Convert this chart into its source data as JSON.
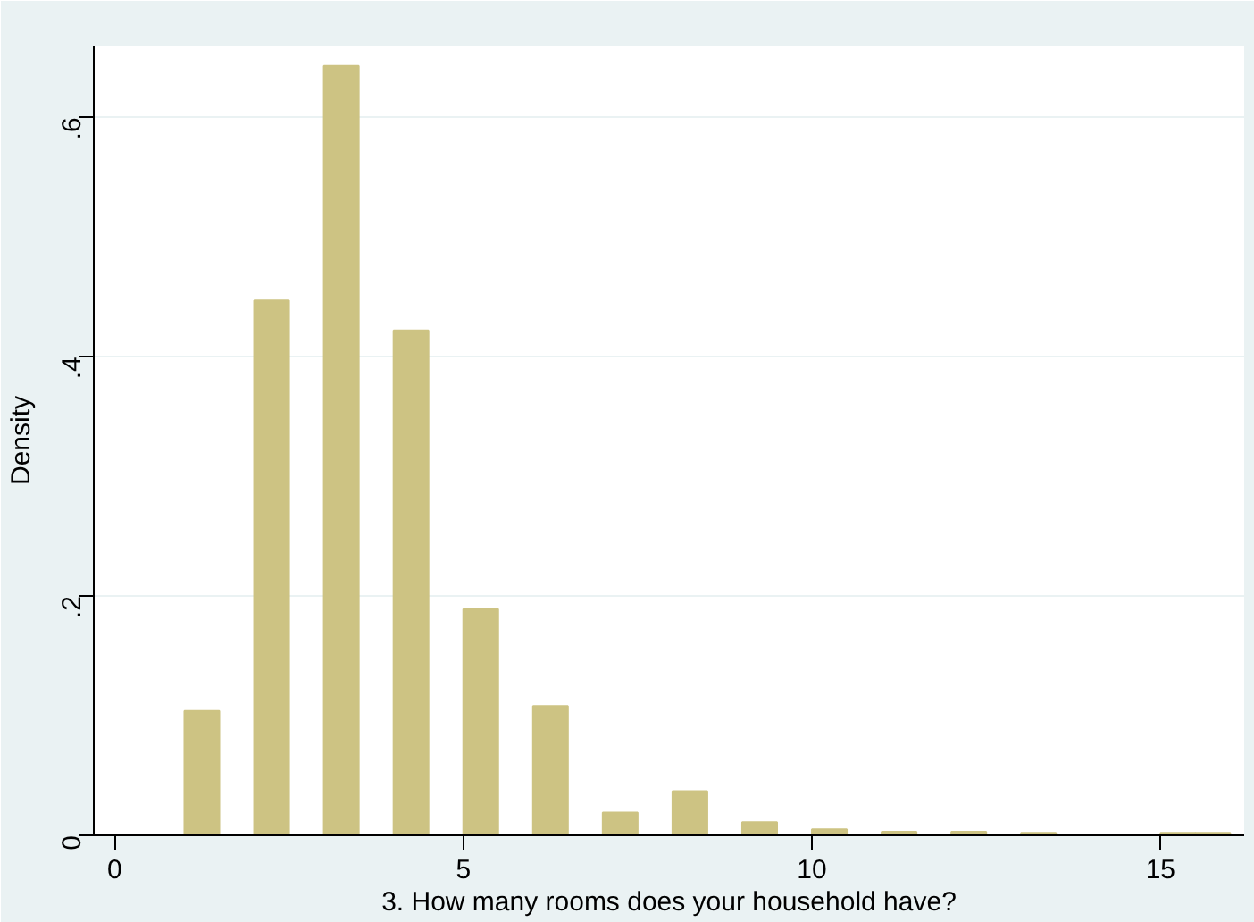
{
  "chart_data": {
    "type": "histogram",
    "xlabel": "3. How many rooms does your household have?",
    "ylabel": "Density",
    "bins": [
      1,
      1.5,
      2,
      2.5,
      3,
      3.5,
      4,
      4.5,
      5,
      5.5,
      6,
      6.5,
      7,
      7.5,
      8,
      8.5,
      9,
      9.5,
      10,
      10.5,
      11,
      11.5,
      12,
      12.5,
      13,
      13.5,
      14,
      14.5,
      15,
      15.5,
      16
    ],
    "values": [
      0.104,
      0,
      0.447,
      0,
      0.643,
      0,
      0.422,
      0,
      0.189,
      0,
      0.108,
      0,
      0.019,
      0,
      0.037,
      0,
      0.011,
      0,
      0.005,
      0,
      0.003,
      0,
      0.003,
      0,
      0.002,
      0,
      0,
      0,
      0.002,
      0.002
    ],
    "color": "#cdc383",
    "xlim": [
      -0.3,
      16.2
    ],
    "ylim": [
      0,
      0.66
    ],
    "xticks": [
      0,
      5,
      10,
      15
    ],
    "yticks": [
      0,
      {
        "value": 0.2,
        "label": ".2"
      },
      {
        "value": 0.4,
        "label": ".4"
      },
      {
        "value": 0.6,
        "label": ".6"
      }
    ],
    "grid": "y"
  }
}
